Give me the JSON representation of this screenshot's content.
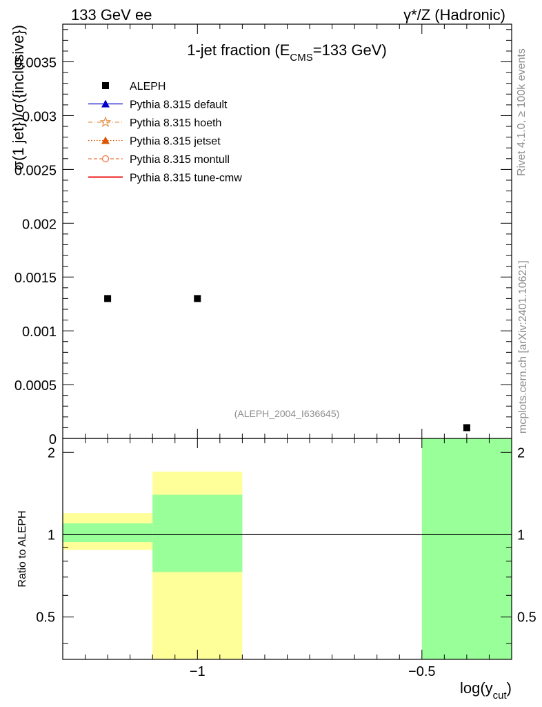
{
  "header": {
    "left": "133 GeV ee",
    "right": "γ*/Z (Hadronic)"
  },
  "side_text": {
    "rivet": "Rivet 4.1.0, ≥ 100k events",
    "mcplots": "mcplots.cern.ch [arXiv:2401.10621]"
  },
  "chart_data": [
    {
      "type": "scatter",
      "panel": "main",
      "title_main": "1-jet fraction (E",
      "title_sub": "CMS",
      "title_end": "=133 GeV)",
      "ylabel": "σ(1 jet})/σ({inclusive})",
      "xlim": [
        -1.3,
        -0.3
      ],
      "ylim": [
        0,
        0.00385
      ],
      "x": [
        -1.2,
        -1.0,
        -0.4
      ],
      "y": [
        0.0013,
        0.0013,
        0.0001
      ],
      "yticks": [
        0,
        0.0005,
        0.001,
        0.0015,
        0.002,
        0.0025,
        0.003,
        0.0035
      ],
      "ytick_labels": [
        "0",
        "0.0005",
        "0.001",
        "0.0015",
        "0.002",
        "0.0025",
        "0.003",
        "0.0035"
      ],
      "watermark": "(ALEPH_2004_I636645)",
      "legend": [
        {
          "name": "ALEPH",
          "color": "#000000",
          "style": "square"
        },
        {
          "name": "Pythia 8.315 default",
          "color": "#0000cc",
          "style": "triangle-line"
        },
        {
          "name": "Pythia 8.315 hoeth",
          "color": "#e69a55",
          "style": "star-dashdot"
        },
        {
          "name": "Pythia 8.315 jetset",
          "color": "#dd5500",
          "style": "triangle-dotted"
        },
        {
          "name": "Pythia 8.315 montull",
          "color": "#ee7744",
          "style": "circle-dashed"
        },
        {
          "name": "Pythia 8.315 tune-cmw",
          "color": "#ee1111",
          "style": "solid"
        }
      ]
    },
    {
      "type": "bar",
      "panel": "ratio",
      "ylabel": "Ratio to ALEPH",
      "xlabel_main": "log(y",
      "xlabel_sub": "cut",
      "xlabel_end": ")",
      "xlim": [
        -1.3,
        -0.3
      ],
      "ylim": [
        0.35,
        2.25
      ],
      "reference": 1.0,
      "bands": [
        {
          "x": [
            -1.3,
            -1.1
          ],
          "yellow": [
            0.88,
            1.2
          ],
          "green": [
            0.94,
            1.1
          ]
        },
        {
          "x": [
            -1.1,
            -0.9
          ],
          "yellow": [
            0.35,
            1.7
          ],
          "green": [
            0.73,
            1.4
          ]
        },
        {
          "x": [
            -0.5,
            -0.3
          ],
          "yellow": [
            0.35,
            2.25
          ],
          "green": [
            0.35,
            2.25
          ]
        }
      ],
      "yticks": [
        0.5,
        1,
        2
      ],
      "ytick_labels": [
        "0.5",
        "1",
        "2"
      ],
      "xticks": [
        -1,
        -0.5
      ],
      "xtick_labels": [
        "−1",
        "−0.5"
      ],
      "colors": {
        "yellow": "#ffff99",
        "green": "#99ff99"
      }
    }
  ]
}
